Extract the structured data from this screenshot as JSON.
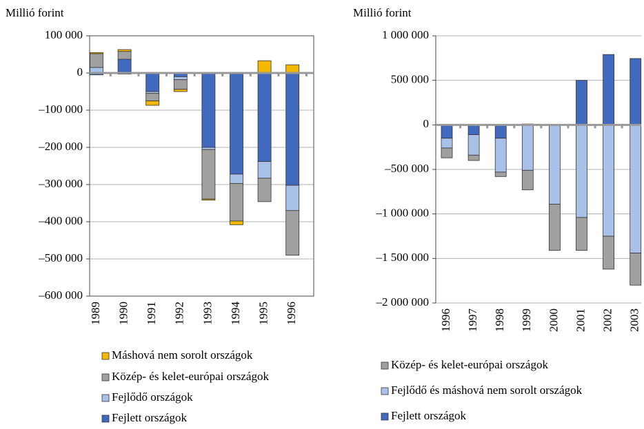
{
  "chart_data": [
    {
      "type": "bar",
      "stacked": true,
      "y_label": "Millió forint",
      "categories": [
        "1989",
        "1990",
        "1991",
        "1992",
        "1993",
        "1994",
        "1995",
        "1996"
      ],
      "series": [
        {
          "name": "Fejlett országok",
          "color": "#4169bd",
          "values": [
            -5000,
            37000,
            -50000,
            -10000,
            -200000,
            -272000,
            -238000,
            -302000
          ]
        },
        {
          "name": "Fejlődő országok",
          "color": "#a9c0e8",
          "values": [
            15000,
            -3000,
            -5000,
            -8000,
            -6000,
            -25000,
            -45000,
            -68000
          ]
        },
        {
          "name": "Közép- és kelet-európai országok",
          "color": "#a0a0a0",
          "values": [
            37000,
            21000,
            -20000,
            -26000,
            -133000,
            -101000,
            -63000,
            -120000
          ]
        },
        {
          "name": "Máshová nem sorolt országok",
          "color": "#f5b800",
          "values": [
            3000,
            5000,
            -12000,
            -6000,
            -3000,
            -10000,
            33000,
            22000
          ]
        }
      ],
      "ylim": [
        -600000,
        100000
      ],
      "yticks": [
        {
          "value": -600000,
          "label": "–600 000"
        },
        {
          "value": -500000,
          "label": "–500 000"
        },
        {
          "value": -400000,
          "label": "–400 000"
        },
        {
          "value": -300000,
          "label": "–300 000"
        },
        {
          "value": -200000,
          "label": "–200 000"
        },
        {
          "value": -100000,
          "label": "–100 000"
        },
        0,
        {
          "value": 100000,
          "label": "100 000"
        }
      ],
      "grid": true
    },
    {
      "type": "bar",
      "stacked": true,
      "y_label": "Millió forint",
      "categories": [
        "1996",
        "1997",
        "1998",
        "1999",
        "2000",
        "2001",
        "2002",
        "2003"
      ],
      "series": [
        {
          "name": "Fejlett országok",
          "color": "#4169bd",
          "values": [
            -150000,
            -110000,
            -150000,
            10000,
            0,
            500000,
            790000,
            745000
          ]
        },
        {
          "name": "Fejlődő és máshová nem sorolt országok",
          "color": "#a9c0e8",
          "values": [
            -110000,
            -230000,
            -380000,
            -510000,
            -890000,
            -1040000,
            -1250000,
            -1440000
          ]
        },
        {
          "name": "Közép- és kelet-európai országok",
          "color": "#a0a0a0",
          "values": [
            -110000,
            -60000,
            -50000,
            -220000,
            -520000,
            -370000,
            -370000,
            -360000
          ]
        }
      ],
      "ylim": [
        -2000000,
        1000000
      ],
      "yticks": [
        {
          "value": -2000000,
          "label": "–2 000 000"
        },
        {
          "value": -1500000,
          "label": "–1 500 000"
        },
        {
          "value": -1000000,
          "label": "–1 000 000"
        },
        {
          "value": -500000,
          "label": "–500 000"
        },
        0,
        {
          "value": 500000,
          "label": "500 000"
        },
        {
          "value": 1000000,
          "label": "1 000 000"
        }
      ],
      "grid": true
    }
  ]
}
